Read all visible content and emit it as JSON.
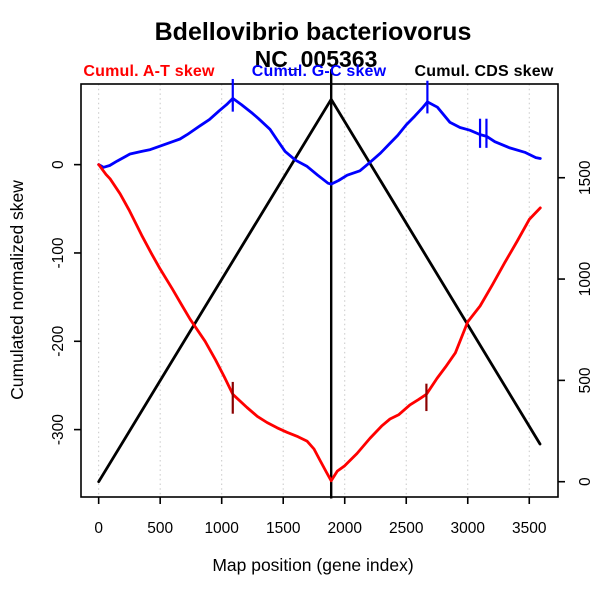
{
  "title": {
    "line1": "Bdellovibrio bacteriovorus",
    "line2": "NC_005363"
  },
  "chart_data": {
    "type": "line",
    "title": "Bdellovibrio bacteriovorus",
    "subtitle": "NC_005363",
    "xlabel": "Map position (gene index)",
    "ylabel": "Cumulated normalized skew",
    "xlim": [
      -143.6,
      3733.6
    ],
    "ylim_left": [
      -376.3,
      91.3
    ],
    "ylim_right": [
      -75.5,
      1962.5
    ],
    "x_ticks": [
      0,
      500,
      1000,
      1500,
      2000,
      2500,
      3000,
      3500
    ],
    "left_ticks": [
      0,
      -100,
      -200,
      -300
    ],
    "right_ticks": [
      0,
      500,
      1000,
      1500
    ],
    "grid": "vertical-dotted",
    "legend_position": "top",
    "colors": {
      "grid": "#C8C8C8",
      "axis": "#000000",
      "origin_marker": "#8B0000"
    },
    "series": [
      {
        "name": "Cumul. A-T skew",
        "color": "#FF0000",
        "axis": "left",
        "points": [
          [
            0,
            0
          ],
          [
            60,
            -11
          ],
          [
            93,
            -16
          ],
          [
            174,
            -33
          ],
          [
            250,
            -52
          ],
          [
            350,
            -80
          ],
          [
            430,
            -101
          ],
          [
            499,
            -118
          ],
          [
            600,
            -141
          ],
          [
            680,
            -160
          ],
          [
            743,
            -175
          ],
          [
            865,
            -200
          ],
          [
            950,
            -221
          ],
          [
            1020,
            -240
          ],
          [
            1090,
            -260
          ],
          [
            1206,
            -275
          ],
          [
            1290,
            -285
          ],
          [
            1368,
            -292
          ],
          [
            1450,
            -298
          ],
          [
            1531,
            -303
          ],
          [
            1620,
            -308
          ],
          [
            1693,
            -313
          ],
          [
            1750,
            -322
          ],
          [
            1800,
            -335
          ],
          [
            1850,
            -348
          ],
          [
            1890,
            -358
          ],
          [
            1940,
            -347
          ],
          [
            2000,
            -341
          ],
          [
            2100,
            -327
          ],
          [
            2205,
            -310
          ],
          [
            2300,
            -296
          ],
          [
            2368,
            -288
          ],
          [
            2440,
            -283
          ],
          [
            2530,
            -272
          ],
          [
            2600,
            -266
          ],
          [
            2664,
            -260
          ],
          [
            2750,
            -242
          ],
          [
            2820,
            -229
          ],
          [
            2900,
            -213
          ],
          [
            3000,
            -178
          ],
          [
            3100,
            -160
          ],
          [
            3200,
            -136
          ],
          [
            3300,
            -111
          ],
          [
            3400,
            -87
          ],
          [
            3500,
            -62
          ],
          [
            3590,
            -49
          ]
        ]
      },
      {
        "name": "Cumul. G-C skew",
        "color": "#0000FF",
        "axis": "left",
        "points": [
          [
            0,
            0
          ],
          [
            40,
            -3
          ],
          [
            90,
            -1
          ],
          [
            150,
            4
          ],
          [
            255,
            12
          ],
          [
            350,
            15
          ],
          [
            420,
            17
          ],
          [
            500,
            21
          ],
          [
            600,
            26
          ],
          [
            661,
            29
          ],
          [
            720,
            34
          ],
          [
            824,
            44
          ],
          [
            900,
            51
          ],
          [
            980,
            61
          ],
          [
            1040,
            68
          ],
          [
            1090,
            75
          ],
          [
            1160,
            68
          ],
          [
            1250,
            58
          ],
          [
            1300,
            52
          ],
          [
            1393,
            40
          ],
          [
            1450,
            28
          ],
          [
            1515,
            15
          ],
          [
            1600,
            5
          ],
          [
            1694,
            -2
          ],
          [
            1780,
            -12
          ],
          [
            1864,
            -21
          ],
          [
            1890,
            -22
          ],
          [
            1950,
            -18
          ],
          [
            2020,
            -12
          ],
          [
            2123,
            -7
          ],
          [
            2200,
            2
          ],
          [
            2290,
            13
          ],
          [
            2367,
            24
          ],
          [
            2430,
            33
          ],
          [
            2500,
            45
          ],
          [
            2570,
            55
          ],
          [
            2630,
            64
          ],
          [
            2672,
            71
          ],
          [
            2753,
            65
          ],
          [
            2854,
            48
          ],
          [
            2937,
            42
          ],
          [
            3017,
            39
          ],
          [
            3100,
            34
          ],
          [
            3155,
            32
          ],
          [
            3220,
            26
          ],
          [
            3342,
            19
          ],
          [
            3464,
            14
          ],
          [
            3553,
            8
          ],
          [
            3590,
            7
          ]
        ]
      },
      {
        "name": "Cumul. CDS skew",
        "color": "#000000",
        "axis": "right",
        "points": [
          [
            0,
            0
          ],
          [
            1890,
            1887
          ],
          [
            3587,
            186
          ]
        ]
      }
    ],
    "vline": {
      "x": 1890,
      "v1": 108,
      "v2": -378,
      "color": "#000000"
    },
    "marks": [
      {
        "x": 1090,
        "v1": 97,
        "v2": 60,
        "color": "#0000FF"
      },
      {
        "x": 2672,
        "v1": 95,
        "v2": 58,
        "color": "#0000FF"
      },
      {
        "x": 3100,
        "v1": 52,
        "v2": 19,
        "color": "#0000FF"
      },
      {
        "x": 3152,
        "v1": 52,
        "v2": 19,
        "color": "#0000FF"
      },
      {
        "x": 1090,
        "v1": -246,
        "v2": -282,
        "color": "#8B0000"
      },
      {
        "x": 2664,
        "v1": -248,
        "v2": -279,
        "color": "#8B0000"
      }
    ]
  }
}
